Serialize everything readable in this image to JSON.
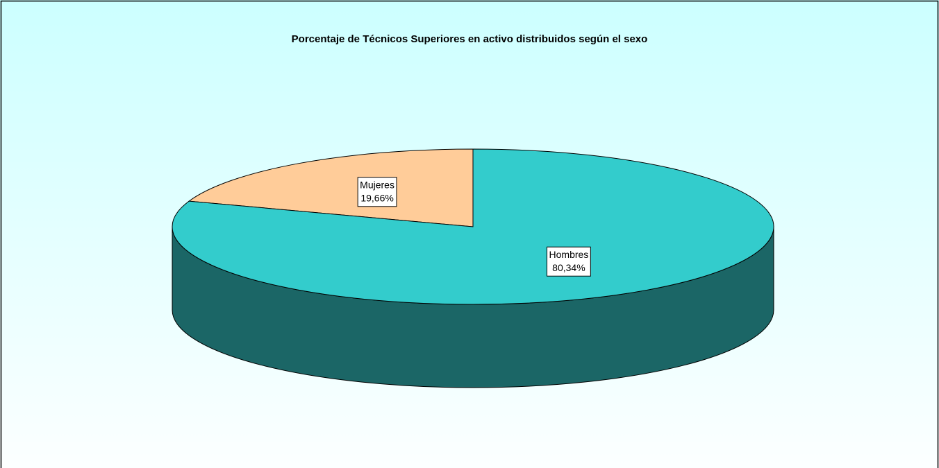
{
  "chart_data": {
    "type": "pie3d",
    "title": "Porcentaje de Técnicos Superiores en activo distribuidos según el sexo",
    "categories": [
      "Mujeres",
      "Hombres"
    ],
    "values": [
      19.66,
      80.34
    ],
    "value_labels": [
      "19,66%",
      "80,34%"
    ],
    "colors": [
      "#FFCC99",
      "#33CCCC"
    ],
    "side_colors": [
      "#B38F6B",
      "#1B6666"
    ],
    "start_angle": 90,
    "direction": "counterclockwise"
  }
}
